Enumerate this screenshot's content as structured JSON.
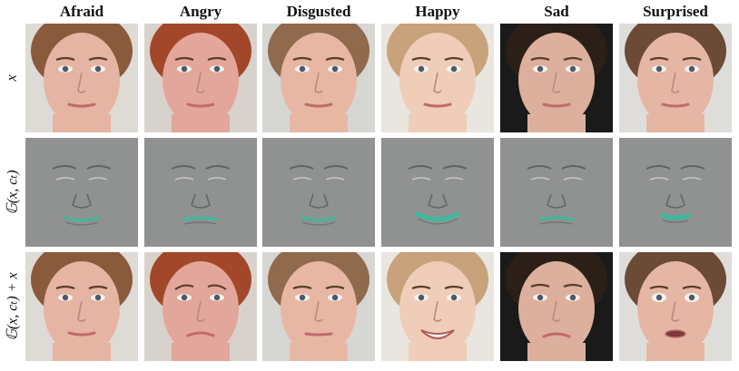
{
  "columns": [
    "Afraid",
    "Angry",
    "Disgusted",
    "Happy",
    "Sad",
    "Surprised"
  ],
  "rows": [
    {
      "id": "input",
      "label": "x"
    },
    {
      "id": "residual",
      "label": "𝔾(x, cₜ)"
    },
    {
      "id": "output",
      "label": "𝔾(x, cₜ) + x"
    }
  ],
  "subjects": [
    {
      "expression": "Afraid",
      "skin": "#e6b4a2",
      "hair": "#8a5a3c",
      "bg": "#dedad6",
      "mouth": "neutral"
    },
    {
      "expression": "Angry",
      "skin": "#e3a69a",
      "hair": "#a2472a",
      "bg": "#d8d2cc",
      "mouth": "frown"
    },
    {
      "expression": "Disgusted",
      "skin": "#e8b7a4",
      "hair": "#8f6a4c",
      "bg": "#d6d6d3",
      "mouth": "flat"
    },
    {
      "expression": "Happy",
      "skin": "#f0cdb8",
      "hair": "#c7a27a",
      "bg": "#e9e6e0",
      "mouth": "smile"
    },
    {
      "expression": "Sad",
      "skin": "#dcb09c",
      "hair": "#2b1f18",
      "bg": "#1a1a1a",
      "mouth": "down"
    },
    {
      "expression": "Surprised",
      "skin": "#e6b6a4",
      "hair": "#6b4a36",
      "bg": "#dfddd9",
      "mouth": "open"
    }
  ],
  "colors": {
    "residual_bg": "#8f9290",
    "residual_lines": "#5f6462",
    "residual_highlight": "#ffffff",
    "residual_teal": "#3fb8a0"
  }
}
